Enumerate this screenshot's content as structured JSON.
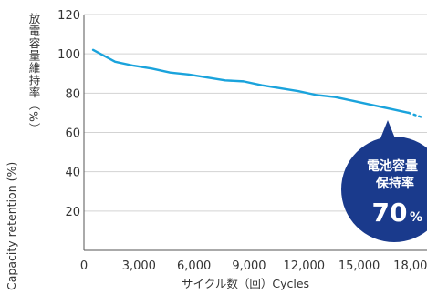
{
  "chart_data": {
    "type": "line",
    "x": [
      500,
      1700,
      2700,
      3700,
      4700,
      5700,
      6700,
      7700,
      8700,
      9700,
      10700,
      11700,
      12700,
      13700,
      14700,
      15700,
      16700,
      17700
    ],
    "series": [
      {
        "values": [
          102,
          96,
          94,
          92.5,
          90.5,
          89.5,
          88,
          86.5,
          86,
          84,
          82.5,
          81,
          79,
          78,
          76,
          74,
          72,
          70
        ]
      }
    ],
    "projection": {
      "x": [
        17700,
        18500
      ],
      "values": [
        70,
        67.5
      ]
    },
    "xticks": [
      0,
      3000,
      6000,
      9000,
      12000,
      15000,
      18000
    ],
    "xtick_labels": [
      "0",
      "3,000",
      "6,000",
      "9,000",
      "12,000",
      "15,000",
      "18,000"
    ],
    "yticks": [
      20,
      40,
      60,
      80,
      100,
      120
    ],
    "ytick_labels": [
      "20",
      "40",
      "60",
      "80",
      "100",
      "120"
    ],
    "xlim": [
      0,
      18700
    ],
    "ylim": [
      0,
      120
    ],
    "xlabel": "サイクル数（回）Cycles",
    "ylabel_ja": "放電容量維持率（%）",
    "ylabel_en": "Capacity retention (%)",
    "grid": true,
    "annotation": {
      "line1": "電池容量",
      "line2": "保持率",
      "value": "70",
      "unit": "%"
    },
    "colors": {
      "line": "#1aa3dc",
      "grid": "#d3d3d3",
      "axis": "#555555",
      "callout": "#1a3a8c",
      "background": "#ffffff"
    }
  }
}
